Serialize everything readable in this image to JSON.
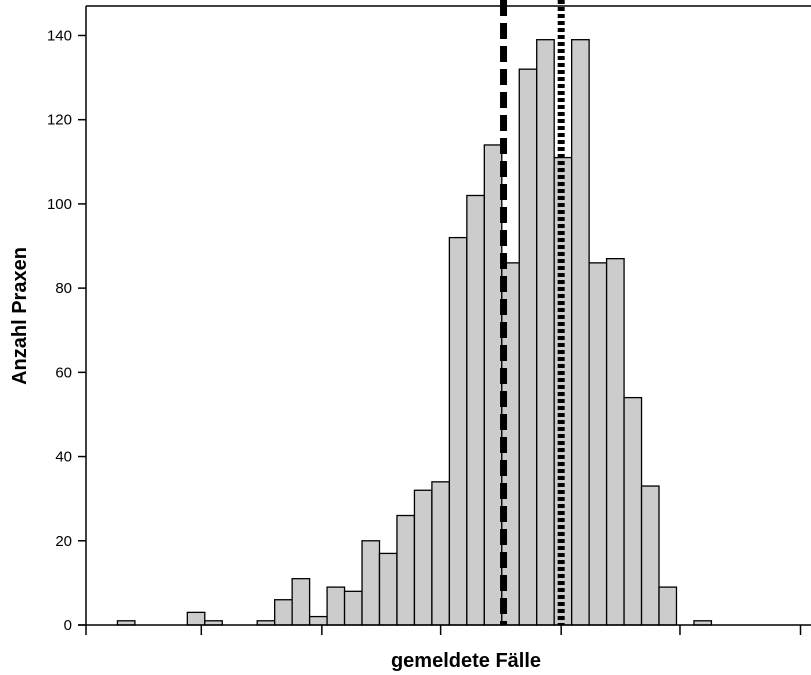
{
  "chart_data": {
    "type": "bar",
    "subtype": "histogram",
    "title": "",
    "xlabel": "gemeldete Fälle",
    "ylabel": "Anzahl Praxen",
    "ylim": [
      0,
      147
    ],
    "yticks": [
      0,
      20,
      40,
      60,
      80,
      100,
      120,
      140
    ],
    "xlim": [
      -0.3,
      41.2
    ],
    "xticks": [
      -0.3,
      6.3,
      13.2,
      20.0,
      26.9,
      33.7,
      40.6
    ],
    "grid": false,
    "legend": "none",
    "bar_color": "#cccccc",
    "edge_color": "#000000",
    "bins": [
      {
        "x": 2,
        "value": 1
      },
      {
        "x": 3,
        "value": 0
      },
      {
        "x": 4,
        "value": 0
      },
      {
        "x": 5,
        "value": 0
      },
      {
        "x": 6,
        "value": 3
      },
      {
        "x": 7,
        "value": 1
      },
      {
        "x": 8,
        "value": 0
      },
      {
        "x": 9,
        "value": 0
      },
      {
        "x": 10,
        "value": 1
      },
      {
        "x": 11,
        "value": 6
      },
      {
        "x": 12,
        "value": 11
      },
      {
        "x": 13,
        "value": 2
      },
      {
        "x": 14,
        "value": 9
      },
      {
        "x": 15,
        "value": 8
      },
      {
        "x": 16,
        "value": 20
      },
      {
        "x": 17,
        "value": 17
      },
      {
        "x": 18,
        "value": 26
      },
      {
        "x": 19,
        "value": 32
      },
      {
        "x": 20,
        "value": 34
      },
      {
        "x": 21,
        "value": 92
      },
      {
        "x": 22,
        "value": 102
      },
      {
        "x": 23,
        "value": 114
      },
      {
        "x": 24,
        "value": 86
      },
      {
        "x": 25,
        "value": 132
      },
      {
        "x": 26,
        "value": 139
      },
      {
        "x": 27,
        "value": 111
      },
      {
        "x": 28,
        "value": 139
      },
      {
        "x": 29,
        "value": 86
      },
      {
        "x": 30,
        "value": 87
      },
      {
        "x": 31,
        "value": 54
      },
      {
        "x": 32,
        "value": 33
      },
      {
        "x": 33,
        "value": 9
      },
      {
        "x": 34,
        "value": 0
      },
      {
        "x": 35,
        "value": 1
      }
    ],
    "reference_lines": [
      {
        "x": 23.6,
        "style": "dashed",
        "color": "#000000"
      },
      {
        "x": 26.9,
        "style": "dotted",
        "color": "#000000"
      }
    ]
  }
}
